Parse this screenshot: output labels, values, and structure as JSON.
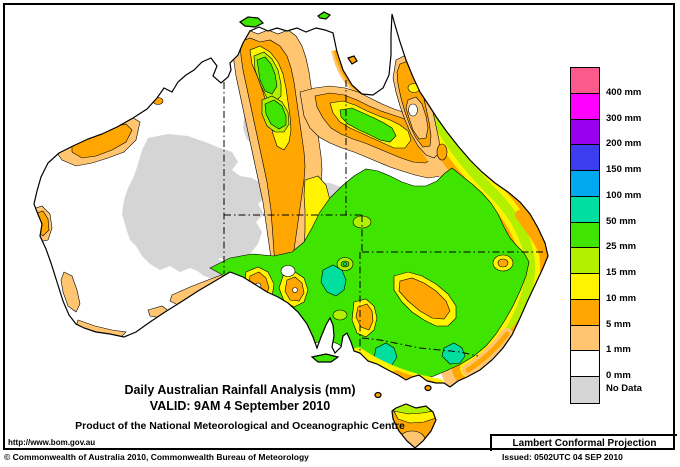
{
  "title": {
    "line1": "Daily Australian Rainfall Analysis (mm)",
    "line2": "VALID: 9AM 4 September 2010",
    "line3": "Product of the National Meteorological and Oceanographic Centre"
  },
  "frame": {
    "url_label": "http://www.bom.gov.au",
    "projection_label": "Lambert Conformal Projection"
  },
  "footer": {
    "copyright": "© Commonwealth of Australia 2010, Commonwealth Bureau of Meteorology",
    "issued": "Issued: 0502UTC 04 SEP 2010"
  },
  "legend": {
    "entries": [
      {
        "label": "400 mm",
        "color": "#FA5A8C"
      },
      {
        "label": "300 mm",
        "color": "#FF00FF"
      },
      {
        "label": "200 mm",
        "color": "#9900F0"
      },
      {
        "label": "150 mm",
        "color": "#3C3CF0"
      },
      {
        "label": "100 mm",
        "color": "#00A8F0"
      },
      {
        "label": "50 mm",
        "color": "#00DFA0"
      },
      {
        "label": "25 mm",
        "color": "#3FE400"
      },
      {
        "label": "15 mm",
        "color": "#B2F000"
      },
      {
        "label": "10 mm",
        "color": "#FFF300"
      },
      {
        "label": "5 mm",
        "color": "#FFA600"
      },
      {
        "label": "1 mm",
        "color": "#FFC571"
      },
      {
        "label": "0 mm",
        "color": "#FFFFFF"
      },
      {
        "label": "No Data",
        "color": "#D5D5D5"
      }
    ]
  }
}
